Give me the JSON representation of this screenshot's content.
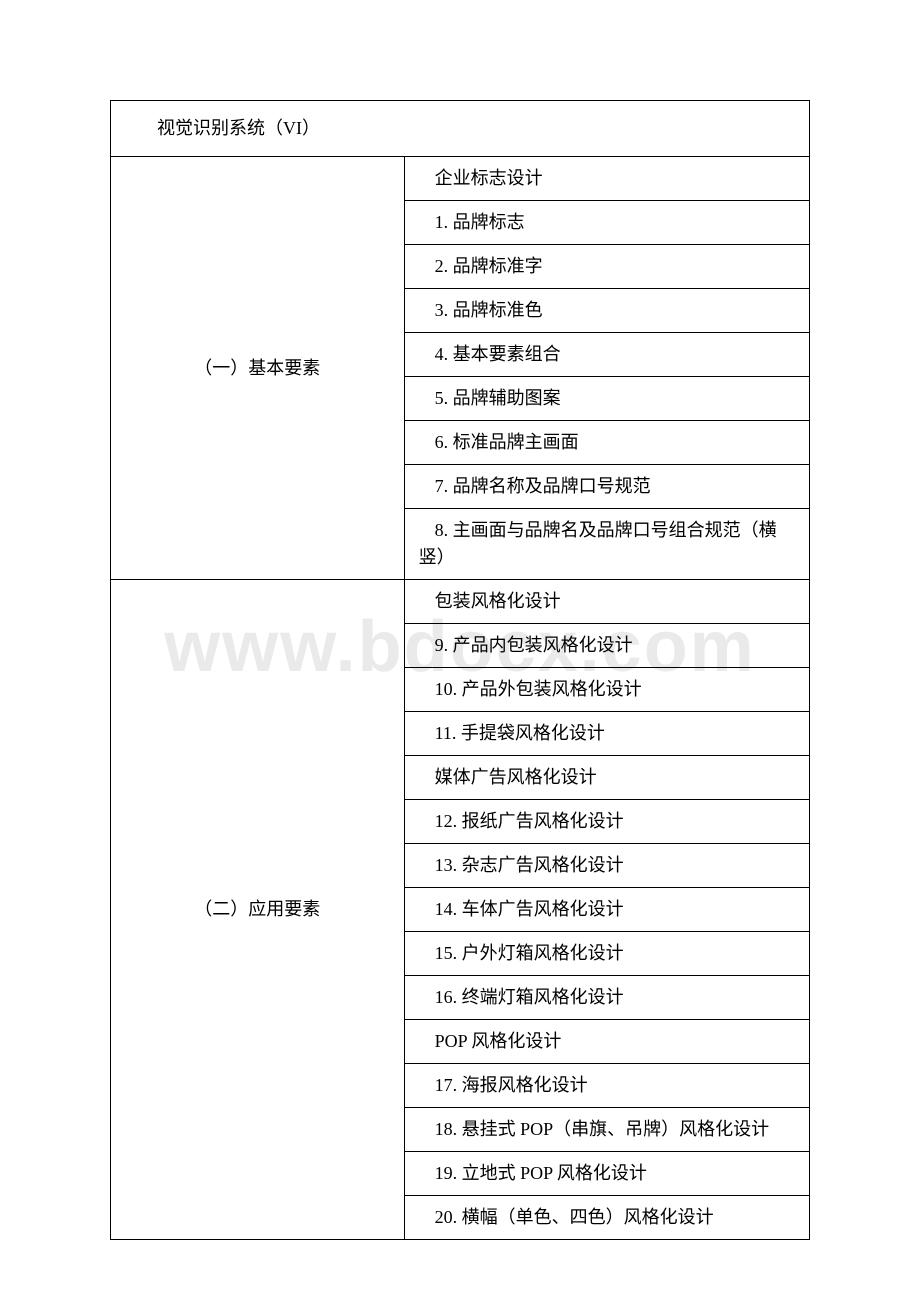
{
  "watermark": "www.bdocx.com",
  "table": {
    "header": "视觉识别系统（VI）",
    "sections": [
      {
        "label": "（一）基本要素",
        "rows": [
          "企业标志设计",
          "1. 品牌标志",
          "2. 品牌标准字",
          "3. 品牌标准色",
          "4. 基本要素组合",
          "5. 品牌辅助图案",
          "6. 标准品牌主画面",
          "7. 品牌名称及品牌口号规范",
          "8. 主画面与品牌名及品牌口号组合规范（横 竖）"
        ]
      },
      {
        "label": "（二）应用要素",
        "rows": [
          "包装风格化设计",
          "9. 产品内包装风格化设计",
          "10. 产品外包装风格化设计",
          "11. 手提袋风格化设计",
          "媒体广告风格化设计",
          "12. 报纸广告风格化设计",
          "13. 杂志广告风格化设计",
          "14. 车体广告风格化设计",
          "15. 户外灯箱风格化设计",
          "16. 终端灯箱风格化设计",
          "POP 风格化设计",
          "17. 海报风格化设计",
          "18. 悬挂式 POP（串旗、吊牌）风格化设计",
          "19. 立地式 POP 风格化设计",
          "20. 横幅（单色、四色）风格化设计"
        ]
      }
    ]
  },
  "colors": {
    "background": "#ffffff",
    "border": "#000000",
    "text": "#000000",
    "watermark": "#eaeaea"
  },
  "fonts": {
    "body_size": 18,
    "watermark_size": 72
  }
}
